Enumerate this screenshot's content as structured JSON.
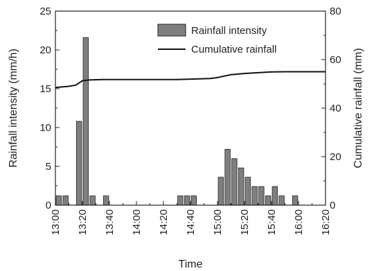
{
  "chart_data": {
    "type": "bar+line",
    "title": "",
    "xlabel": "Time",
    "ylabel_left": "Rainfall intensity (mm/h)",
    "ylabel_right": "Cumulative rainfall (mm)",
    "x_ticks": [
      "13:00",
      "13:20",
      "13:40",
      "14:00",
      "14:20",
      "14:40",
      "15:00",
      "15:20",
      "15:40",
      "16:00",
      "16:20"
    ],
    "y_left_ticks": [
      "0",
      "5",
      "10",
      "15",
      "20",
      "25"
    ],
    "y_right_ticks": [
      "0",
      "20",
      "40",
      "60",
      "80"
    ],
    "x_range_minutes_after_13_00": [
      0,
      200
    ],
    "ylim_left": [
      0,
      25
    ],
    "ylim_right": [
      0,
      80
    ],
    "legend": {
      "placement": "top-right",
      "bar_label": "Rainfall intensity",
      "line_label": "Cumulative rainfall"
    },
    "bar_color": "#7f7f7f",
    "line_color": "#111111",
    "series": [
      {
        "name": "Rainfall intensity",
        "kind": "bar",
        "axis": "left",
        "x_minutes": [
          0,
          5,
          15,
          20,
          25,
          35,
          90,
          95,
          100,
          120,
          125,
          130,
          135,
          140,
          145,
          150,
          155,
          160,
          165,
          175
        ],
        "values": [
          1.2,
          1.2,
          10.8,
          21.6,
          1.2,
          1.2,
          1.2,
          1.2,
          1.2,
          3.6,
          7.2,
          6.0,
          4.8,
          3.6,
          2.4,
          2.4,
          1.2,
          2.4,
          1.2,
          1.2
        ]
      },
      {
        "name": "Cumulative rainfall",
        "kind": "line",
        "axis": "right",
        "x_minutes": [
          0,
          10,
          15,
          20,
          25,
          35,
          60,
          90,
          115,
          120,
          125,
          130,
          140,
          150,
          160,
          170,
          180,
          200
        ],
        "values": [
          48.5,
          49,
          49.5,
          51.3,
          51.6,
          51.8,
          51.8,
          51.8,
          52.2,
          52.6,
          53.2,
          53.8,
          54.3,
          54.6,
          54.9,
          55,
          55,
          55
        ]
      }
    ]
  }
}
